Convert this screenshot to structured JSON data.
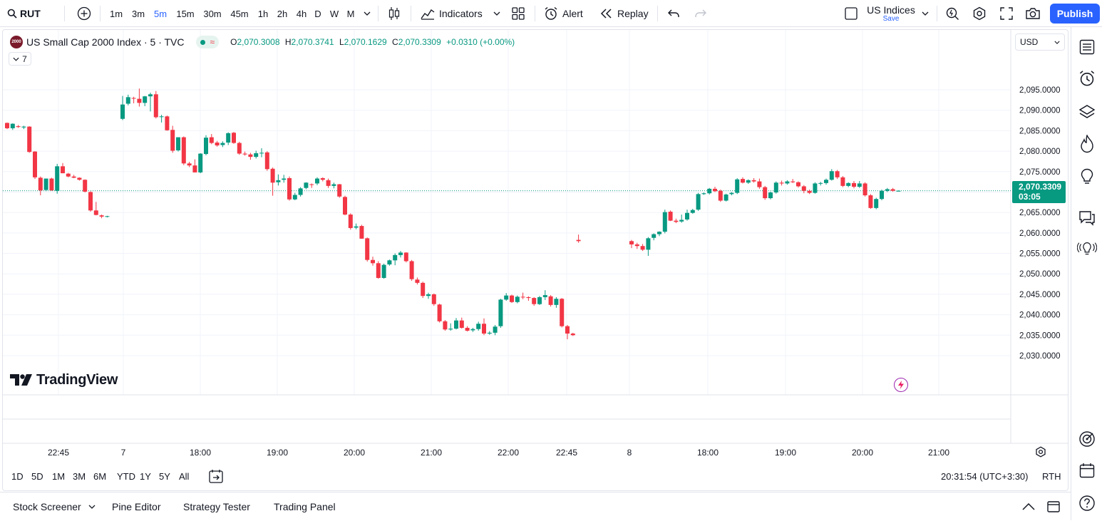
{
  "toolbar": {
    "symbol": "RUT",
    "intervals": [
      "1m",
      "3m",
      "5m",
      "15m",
      "30m",
      "45m",
      "1h",
      "2h",
      "4h",
      "D",
      "W",
      "M"
    ],
    "active_interval": "5m",
    "indicators_label": "Indicators",
    "alert_label": "Alert",
    "replay_label": "Replay",
    "layout_name": "US Indices",
    "layout_save": "Save",
    "publish_label": "Publish"
  },
  "legend": {
    "title": "US Small Cap 2000 Index · 5 · TVC",
    "badge": "2000",
    "o_label": "O",
    "o": "2,070.3008",
    "h_label": "H",
    "h": "2,070.3741",
    "l_label": "L",
    "l": "2,070.1629",
    "c_label": "C",
    "c": "2,070.3309",
    "change": "+0.0310 (+0.00%)",
    "indicators_count": "7"
  },
  "currency": "USD",
  "price_tag": {
    "price": "2,070.3309",
    "countdown": "03:05"
  },
  "watermark": "TradingView",
  "chart_data": {
    "type": "candlestick",
    "y_ticks": [
      2095,
      2090,
      2085,
      2080,
      2075,
      2070,
      2065,
      2060,
      2055,
      2050,
      2045,
      2040,
      2035,
      2030
    ],
    "y_tick_labels": [
      "2,095.0000",
      "2,090.0000",
      "2,085.0000",
      "2,080.0000",
      "2,075.0000",
      "2,070.0000",
      "2,065.0000",
      "2,060.0000",
      "2,055.0000",
      "2,050.0000",
      "2,045.0000",
      "2,040.0000",
      "2,035.0000",
      "2,030.0000"
    ],
    "ylim": [
      2028.5,
      2097.5
    ],
    "last_price": 2070.3309,
    "x_labels": [
      "22:45",
      "7",
      "18:00",
      "19:00",
      "20:00",
      "21:00",
      "22:00",
      "22:45",
      "8",
      "18:00",
      "19:00",
      "20:00",
      "21:00"
    ],
    "up_color": "#089981",
    "down_color": "#f23645",
    "candles": [
      [
        2086.9,
        2087.0,
        2085.4,
        2085.6
      ],
      [
        2085.6,
        2086.8,
        2085.2,
        2086.7
      ],
      [
        2086.1,
        2086.4,
        2085.7,
        2085.9
      ],
      [
        2085.8,
        2086.2,
        2085.4,
        2086.0
      ],
      [
        2086.0,
        2086.1,
        2079.6,
        2079.8
      ],
      [
        2079.9,
        2080.0,
        2073.2,
        2073.6
      ],
      [
        2073.5,
        2073.8,
        2069.2,
        2070.4
      ],
      [
        2070.5,
        2073.3,
        2070.2,
        2073.3
      ],
      [
        2073.3,
        2073.5,
        2070.3,
        2070.4
      ],
      [
        2070.3,
        2076.9,
        2069.6,
        2076.3
      ],
      [
        2076.3,
        2077.1,
        2074.6,
        2074.6
      ],
      [
        2074.5,
        2074.7,
        2073.6,
        2073.8
      ],
      [
        2073.8,
        2074.2,
        2073.4,
        2073.5
      ],
      [
        2073.5,
        2073.6,
        2072.8,
        2073.0
      ],
      [
        2073.0,
        2073.1,
        2069.9,
        2070.1
      ],
      [
        2070.0,
        2070.2,
        2065.2,
        2065.5
      ],
      [
        2065.5,
        2067.6,
        2064.3,
        2064.4
      ],
      [
        2064.3,
        2064.5,
        2063.6,
        2064.0
      ],
      [
        2064.0,
        2064.2,
        2063.8,
        2064.1
      ],
      [
        2087.9,
        2093.5,
        2087.6,
        2091.4
      ],
      [
        2091.6,
        2093.8,
        2091.2,
        2093.2
      ],
      [
        2093.0,
        2093.3,
        2091.7,
        2092.9
      ],
      [
        2092.8,
        2095.3,
        2090.9,
        2091.8
      ],
      [
        2091.8,
        2093.5,
        2091.0,
        2093.4
      ],
      [
        2093.4,
        2094.3,
        2089.7,
        2093.9
      ],
      [
        2093.9,
        2094.7,
        2088.0,
        2088.3
      ],
      [
        2088.4,
        2088.9,
        2087.0,
        2088.5
      ],
      [
        2088.5,
        2088.7,
        2085.0,
        2085.1
      ],
      [
        2085.2,
        2086.2,
        2079.6,
        2080.1
      ],
      [
        2080.2,
        2083.3,
        2079.9,
        2083.4
      ],
      [
        2083.4,
        2083.6,
        2076.6,
        2077.0
      ],
      [
        2077.0,
        2077.4,
        2076.1,
        2076.5
      ],
      [
        2076.5,
        2078.0,
        2074.8,
        2074.8
      ],
      [
        2074.8,
        2079.5,
        2074.6,
        2079.4
      ],
      [
        2079.3,
        2083.9,
        2079.0,
        2083.3
      ],
      [
        2083.4,
        2084.2,
        2081.7,
        2082.0
      ],
      [
        2082.1,
        2082.5,
        2081.1,
        2081.4
      ],
      [
        2081.5,
        2082.4,
        2081.0,
        2082.0
      ],
      [
        2082.1,
        2084.6,
        2081.5,
        2084.4
      ],
      [
        2084.5,
        2084.7,
        2081.8,
        2082.0
      ],
      [
        2082.0,
        2082.3,
        2079.1,
        2079.4
      ],
      [
        2079.4,
        2079.9,
        2078.9,
        2079.2
      ],
      [
        2079.2,
        2079.6,
        2077.9,
        2078.6
      ],
      [
        2078.6,
        2080.1,
        2078.2,
        2079.5
      ],
      [
        2079.5,
        2080.7,
        2078.5,
        2079.6
      ],
      [
        2079.7,
        2080.0,
        2075.2,
        2075.6
      ],
      [
        2075.7,
        2076.0,
        2069.1,
        2072.3
      ],
      [
        2072.4,
        2074.3,
        2071.6,
        2072.9
      ],
      [
        2073.0,
        2074.2,
        2072.3,
        2073.3
      ],
      [
        2073.4,
        2073.8,
        2067.9,
        2068.2
      ],
      [
        2068.2,
        2069.8,
        2068.0,
        2069.3
      ],
      [
        2069.3,
        2071.2,
        2068.9,
        2070.9
      ],
      [
        2071.0,
        2072.4,
        2070.7,
        2072.3
      ],
      [
        2071.9,
        2072.1,
        2071.0,
        2071.8
      ],
      [
        2072.1,
        2073.6,
        2071.7,
        2073.3
      ],
      [
        2073.4,
        2073.6,
        2072.6,
        2073.0
      ],
      [
        2072.9,
        2073.3,
        2071.0,
        2071.5
      ],
      [
        2071.5,
        2072.3,
        2070.9,
        2071.9
      ],
      [
        2071.9,
        2072.0,
        2068.6,
        2068.9
      ],
      [
        2068.8,
        2069.1,
        2064.3,
        2064.5
      ],
      [
        2064.5,
        2064.8,
        2060.8,
        2061.2
      ],
      [
        2061.3,
        2062.3,
        2060.9,
        2061.6
      ],
      [
        2061.7,
        2062.0,
        2058.6,
        2058.6
      ],
      [
        2058.7,
        2058.9,
        2053.0,
        2053.4
      ],
      [
        2053.4,
        2054.2,
        2052.0,
        2052.6
      ],
      [
        2052.6,
        2053.1,
        2048.8,
        2049.0
      ],
      [
        2049.0,
        2052.5,
        2048.8,
        2052.2
      ],
      [
        2052.3,
        2053.5,
        2052.0,
        2053.3
      ],
      [
        2053.3,
        2055.0,
        2052.1,
        2054.6
      ],
      [
        2054.6,
        2055.6,
        2054.0,
        2055.2
      ],
      [
        2055.2,
        2055.3,
        2052.8,
        2053.1
      ],
      [
        2053.1,
        2053.4,
        2048.3,
        2048.7
      ],
      [
        2048.6,
        2049.1,
        2047.4,
        2047.8
      ],
      [
        2047.8,
        2048.1,
        2044.1,
        2044.6
      ],
      [
        2044.6,
        2045.4,
        2043.9,
        2045.0
      ],
      [
        2045.0,
        2045.2,
        2042.2,
        2042.6
      ],
      [
        2042.5,
        2042.7,
        2038.1,
        2038.4
      ],
      [
        2038.4,
        2038.7,
        2036.1,
        2036.4
      ],
      [
        2036.4,
        2037.9,
        2036.1,
        2036.6
      ],
      [
        2036.6,
        2039.2,
        2036.4,
        2038.6
      ],
      [
        2038.6,
        2039.3,
        2036.6,
        2036.8
      ],
      [
        2036.8,
        2037.2,
        2035.9,
        2036.1
      ],
      [
        2036.2,
        2036.8,
        2035.8,
        2036.5
      ],
      [
        2036.5,
        2038.3,
        2036.1,
        2037.8
      ],
      [
        2037.8,
        2039.1,
        2035.0,
        2035.4
      ],
      [
        2035.4,
        2036.0,
        2035.1,
        2035.6
      ],
      [
        2035.6,
        2037.5,
        2035.0,
        2037.1
      ],
      [
        2037.2,
        2043.9,
        2036.8,
        2043.7
      ],
      [
        2043.7,
        2045.3,
        2043.4,
        2044.7
      ],
      [
        2044.7,
        2044.9,
        2042.9,
        2043.1
      ],
      [
        2043.1,
        2044.7,
        2042.8,
        2044.4
      ],
      [
        2044.4,
        2045.4,
        2043.8,
        2044.3
      ],
      [
        2044.3,
        2044.5,
        2043.4,
        2044.1
      ],
      [
        2044.1,
        2044.3,
        2042.2,
        2042.6
      ],
      [
        2042.6,
        2044.6,
        2042.4,
        2044.3
      ],
      [
        2044.3,
        2046.0,
        2043.6,
        2044.8
      ],
      [
        2044.5,
        2044.8,
        2042.0,
        2042.4
      ],
      [
        2042.4,
        2044.3,
        2041.7,
        2043.9
      ],
      [
        2043.9,
        2044.1,
        2036.9,
        2037.2
      ],
      [
        2037.2,
        2037.5,
        2034.0,
        2035.4
      ],
      [
        2035.4,
        2035.6,
        2034.8,
        2035.0
      ],
      [
        2058.3,
        2059.6,
        2057.6,
        2058.0
      ],
      [
        2058.0,
        2058.3,
        2056.3,
        2057.2
      ],
      [
        2057.2,
        2057.6,
        2056.1,
        2056.8
      ],
      [
        2056.8,
        2057.3,
        2055.6,
        2055.9
      ],
      [
        2055.9,
        2059.0,
        2054.4,
        2058.7
      ],
      [
        2058.8,
        2059.9,
        2058.2,
        2059.7
      ],
      [
        2059.7,
        2060.4,
        2059.2,
        2060.3
      ],
      [
        2060.3,
        2065.7,
        2059.9,
        2065.1
      ],
      [
        2065.2,
        2065.5,
        2062.9,
        2063.0
      ],
      [
        2063.0,
        2063.5,
        2062.4,
        2062.7
      ],
      [
        2062.8,
        2064.5,
        2062.5,
        2063.2
      ],
      [
        2063.3,
        2065.7,
        2063.0,
        2064.9
      ],
      [
        2064.9,
        2065.9,
        2064.7,
        2065.6
      ],
      [
        2065.7,
        2069.8,
        2065.4,
        2069.5
      ],
      [
        2069.5,
        2069.9,
        2069.3,
        2069.7
      ],
      [
        2069.7,
        2071.0,
        2069.4,
        2070.8
      ],
      [
        2070.8,
        2071.3,
        2070.0,
        2070.2
      ],
      [
        2070.3,
        2070.6,
        2067.6,
        2067.9
      ],
      [
        2067.9,
        2069.6,
        2067.7,
        2069.4
      ],
      [
        2069.5,
        2070.0,
        2069.2,
        2069.8
      ],
      [
        2069.8,
        2073.4,
        2069.5,
        2073.1
      ],
      [
        2073.2,
        2073.6,
        2072.1,
        2072.3
      ],
      [
        2072.3,
        2073.1,
        2072.0,
        2072.9
      ],
      [
        2072.9,
        2073.4,
        2072.3,
        2072.6
      ],
      [
        2072.6,
        2073.3,
        2070.8,
        2071.2
      ],
      [
        2071.2,
        2071.5,
        2068.1,
        2068.5
      ],
      [
        2068.5,
        2070.1,
        2068.2,
        2069.9
      ],
      [
        2069.9,
        2072.6,
        2069.6,
        2072.3
      ],
      [
        2072.3,
        2072.8,
        2071.6,
        2072.1
      ],
      [
        2072.1,
        2072.9,
        2071.8,
        2072.6
      ],
      [
        2072.6,
        2073.2,
        2072.2,
        2072.4
      ],
      [
        2072.4,
        2072.6,
        2071.1,
        2071.4
      ],
      [
        2071.4,
        2071.7,
        2069.7,
        2070.3
      ],
      [
        2070.3,
        2070.6,
        2069.5,
        2069.8
      ],
      [
        2069.8,
        2072.4,
        2069.6,
        2072.1
      ],
      [
        2072.1,
        2072.5,
        2071.6,
        2072.2
      ],
      [
        2072.2,
        2073.3,
        2071.8,
        2073.0
      ],
      [
        2073.0,
        2075.6,
        2072.8,
        2075.1
      ],
      [
        2075.1,
        2075.4,
        2073.2,
        2073.6
      ],
      [
        2073.6,
        2073.9,
        2071.2,
        2071.5
      ],
      [
        2071.5,
        2072.4,
        2071.2,
        2072.2
      ],
      [
        2072.2,
        2072.7,
        2070.9,
        2071.3
      ],
      [
        2071.3,
        2072.7,
        2071.0,
        2072.1
      ],
      [
        2072.1,
        2072.4,
        2068.9,
        2069.2
      ],
      [
        2069.2,
        2069.5,
        2065.9,
        2066.1
      ],
      [
        2066.1,
        2068.6,
        2065.8,
        2068.3
      ],
      [
        2068.3,
        2070.6,
        2068.0,
        2070.3
      ],
      [
        2070.3,
        2071.0,
        2070.0,
        2070.7
      ],
      [
        2070.7,
        2071.0,
        2070.1,
        2070.3
      ],
      [
        2070.3,
        2070.4,
        2070.2,
        2070.3
      ]
    ]
  },
  "range_buttons": [
    "1D",
    "5D",
    "1M",
    "3M",
    "6M",
    "YTD",
    "1Y",
    "5Y",
    "All"
  ],
  "clock": "20:31:54 (UTC+3:30)",
  "session": "RTH",
  "bottom_tabs": [
    "Stock Screener",
    "Pine Editor",
    "Strategy Tester",
    "Trading Panel"
  ]
}
